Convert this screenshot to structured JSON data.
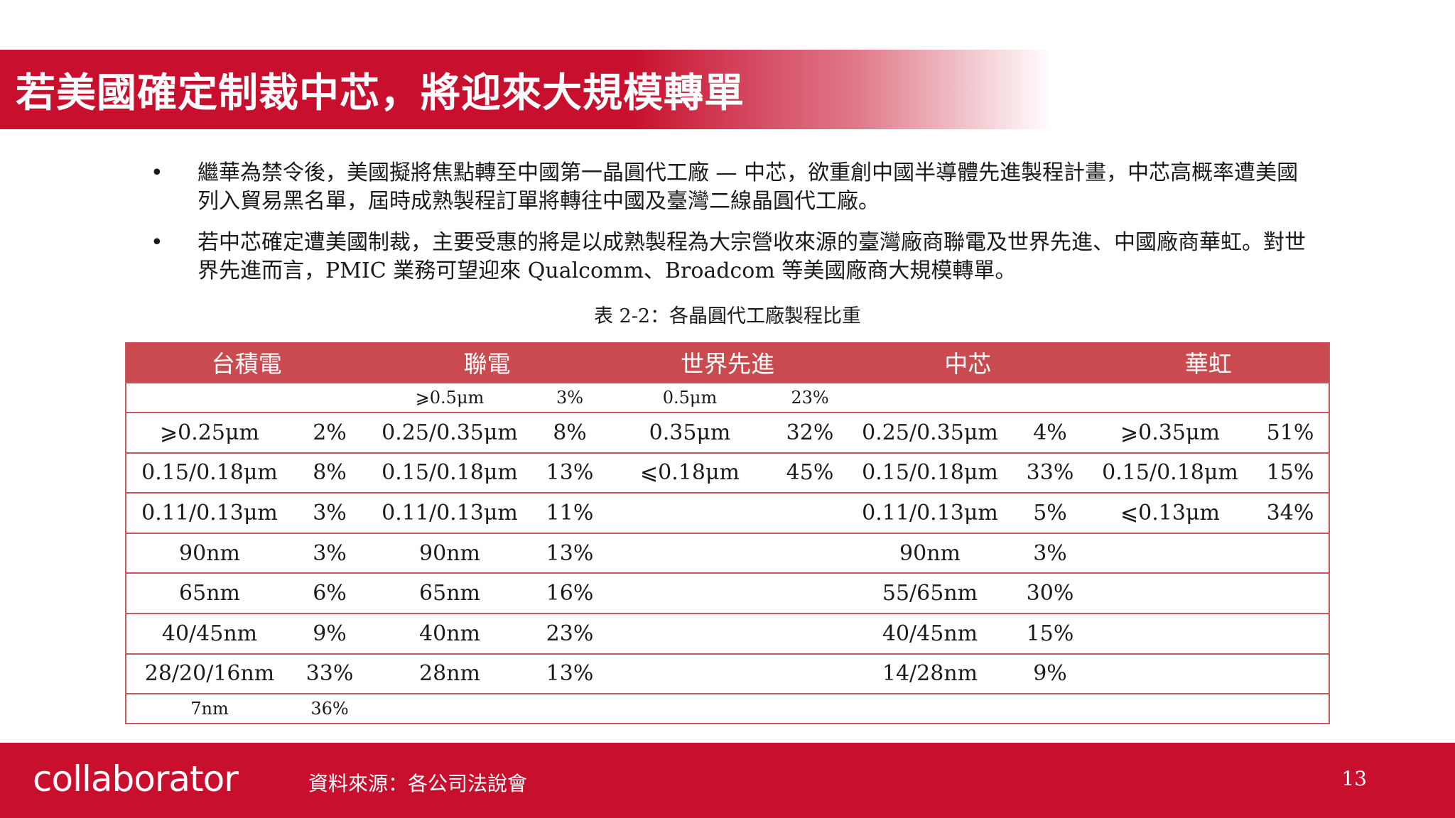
{
  "title": "若美國確定制裁中芯，將迎來大規模轉單",
  "bullets": [
    "繼華為禁令後，美國擬將焦點轉至中國第一晶圓代工廠 — 中芯，欲重創中國半導體先進製程計畫，中芯高概率遭美國列入貿易黑名單，屆時成熟製程訂單將轉往中國及臺灣二線晶圓代工廠。",
    "若中芯確定遭美國制裁，主要受惠的將是以成熟製程為大宗營收來源的臺灣廠商聯電及世界先進、中國廠商華虹。對世界先進而言，PMIC 業務可望迎來 Qualcomm、Broadcom 等美國廠商大規模轉單。"
  ],
  "bullet_marker": "•",
  "caption": "表 2-2：各晶圓代工廠製程比重",
  "table": {
    "headers": [
      "台積電",
      "聯電",
      "世界先進",
      "中芯",
      "華虹"
    ],
    "rows": [
      {
        "size": "small",
        "cells": [
          "",
          "",
          "⩾0.5μm",
          "3%",
          "0.5μm",
          "23%",
          "",
          "",
          "",
          ""
        ]
      },
      {
        "size": "big",
        "cells": [
          "⩾0.25μm",
          "2%",
          "0.25/0.35μm",
          "8%",
          "0.35μm",
          "32%",
          "0.25/0.35μm",
          "4%",
          "⩾0.35μm",
          "51%"
        ]
      },
      {
        "size": "big",
        "cells": [
          "0.15/0.18μm",
          "8%",
          "0.15/0.18μm",
          "13%",
          "⩽0.18μm",
          "45%",
          "0.15/0.18μm",
          "33%",
          "0.15/0.18μm",
          "15%"
        ]
      },
      {
        "size": "big",
        "cells": [
          "0.11/0.13μm",
          "3%",
          "0.11/0.13μm",
          "11%",
          "",
          "",
          "0.11/0.13μm",
          "5%",
          "⩽0.13μm",
          "34%"
        ]
      },
      {
        "size": "big",
        "cells": [
          "90nm",
          "3%",
          "90nm",
          "13%",
          "",
          "",
          "90nm",
          "3%",
          "",
          ""
        ]
      },
      {
        "size": "big",
        "cells": [
          "65nm",
          "6%",
          "65nm",
          "16%",
          "",
          "",
          "55/65nm",
          "30%",
          "",
          ""
        ]
      },
      {
        "size": "big",
        "cells": [
          "40/45nm",
          "9%",
          "40nm",
          "23%",
          "",
          "",
          "40/45nm",
          "15%",
          "",
          ""
        ]
      },
      {
        "size": "big",
        "cells": [
          "28/20/16nm",
          "33%",
          "28nm",
          "13%",
          "",
          "",
          "14/28nm",
          "9%",
          "",
          ""
        ]
      },
      {
        "size": "small",
        "cells": [
          "7nm",
          "36%",
          "",
          "",
          "",
          "",
          "",
          "",
          "",
          ""
        ]
      }
    ]
  },
  "footer": {
    "logo": "collaborator",
    "source": "資料來源：各公司法說會",
    "page_number": "13"
  },
  "colors": {
    "brand_red": "#c8102e",
    "table_header": "#c94b50",
    "table_border": "#c45a5f"
  }
}
